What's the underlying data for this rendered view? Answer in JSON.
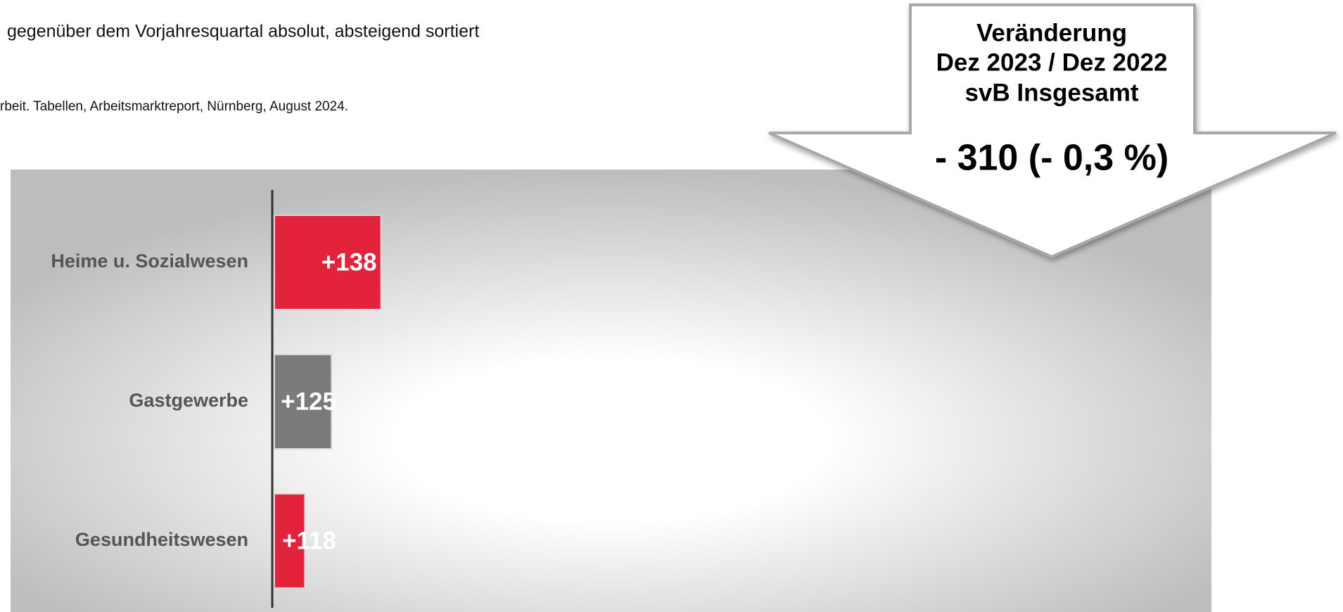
{
  "chart_data": {
    "type": "bar",
    "orientation": "horizontal",
    "title": "gegenüber dem Vorjahresquartal absolut, absteigend sortiert",
    "source": "rbeit. Tabellen, Arbeitsmarktreport, Nürnberg, August 2024.",
    "categories": [
      "Heime u. Sozialwesen",
      "Gastgewerbe",
      "Gesundheitswesen"
    ],
    "values": [
      138,
      125,
      118
    ],
    "value_labels": [
      "+138",
      "+125",
      "+118"
    ],
    "colors": [
      "#e3223b",
      "#7a7a7a",
      "#e3223b"
    ],
    "xlim": [
      110,
      356
    ]
  },
  "callout": {
    "lines": [
      "Veränderung",
      "Dez 2023 / Dez 2022",
      "svB Insgesamt"
    ],
    "value": "- 310 (- 0,3 %)"
  }
}
